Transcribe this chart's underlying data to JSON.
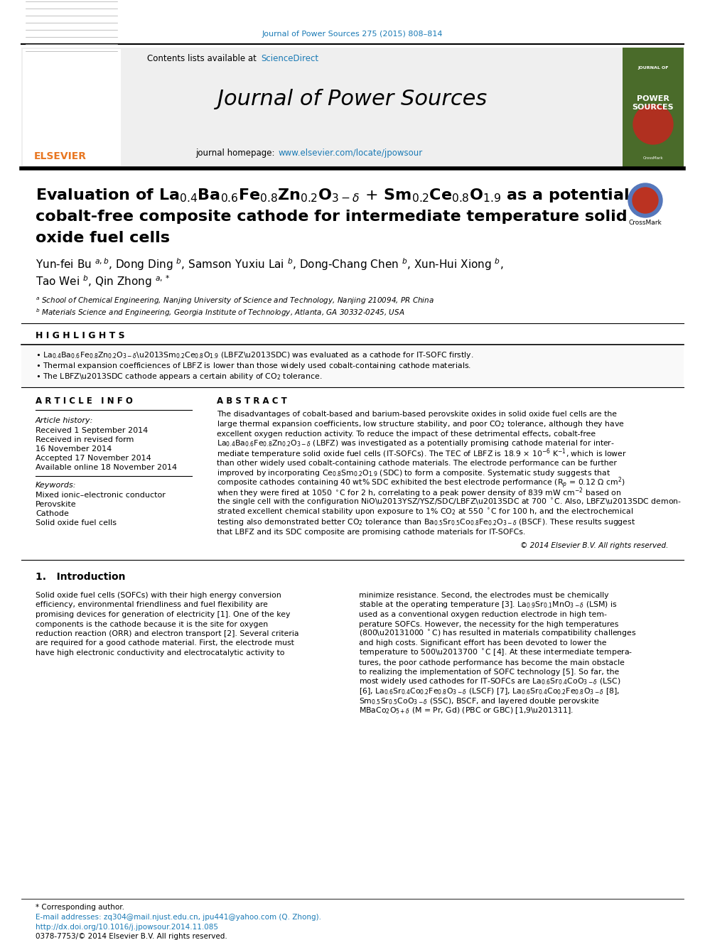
{
  "journal_ref": "Journal of Power Sources 275 (2015) 808–814",
  "journal_name": "Journal of Power Sources",
  "contents_line": "Contents lists available at ",
  "sciencedirect_text": "ScienceDirect",
  "homepage_prefix": "journal homepage: ",
  "homepage_url": "www.elsevier.com/locate/jpowsour",
  "highlights_title": "H I G H L I G H T S",
  "article_info_title": "A R T I C L E   I N F O",
  "abstract_title": "A B S T R A C T",
  "article_history_label": "Article history:",
  "received": "Received 1 September 2014",
  "received_revised": "Received in revised form",
  "nov16": "16 November 2014",
  "accepted": "Accepted 17 November 2014",
  "available": "Available online 18 November 2014",
  "keywords_label": "Keywords:",
  "kw1": "Mixed ionic–electronic conductor",
  "kw2": "Perovskite",
  "kw3": "Cathode",
  "kw4": "Solid oxide fuel cells",
  "copyright": "© 2014 Elsevier B.V. All rights reserved.",
  "intro_head": "1.   Introduction",
  "footnote_corresponding": "* Corresponding author.",
  "footnote_email": "E-mail addresses: zq304@mail.njust.edu.cn, jpu441@yahoo.com (Q. Zhong).",
  "footnote_doi": "http://dx.doi.org/10.1016/j.jpowsour.2014.11.085",
  "footnote_issn": "0378-7753/© 2014 Elsevier B.V. All rights reserved.",
  "bg_color": "#ffffff",
  "header_bg": "#efefef",
  "journal_ref_color": "#1a7ab5",
  "sciencedirect_color": "#1a7ab5",
  "homepage_color": "#1a7ab5",
  "doi_color": "#1a7ab5",
  "elsevier_color": "#e87722"
}
